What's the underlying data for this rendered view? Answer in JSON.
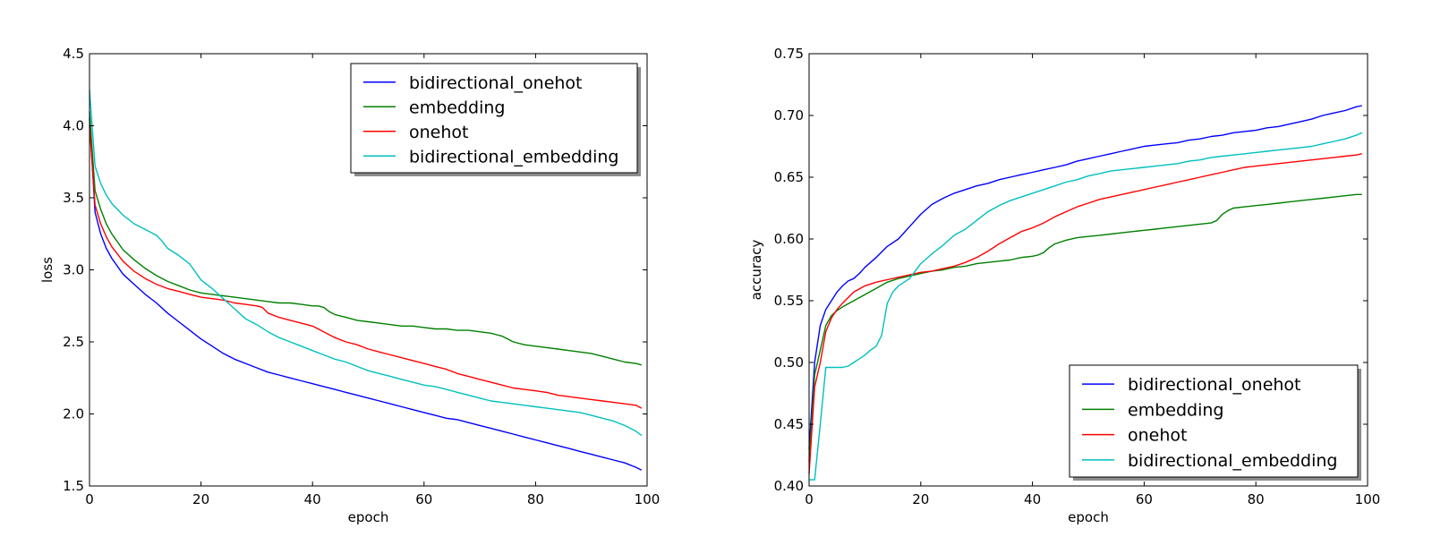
{
  "chart_data": [
    {
      "type": "line",
      "xlabel": "epoch",
      "ylabel": "loss",
      "xlim": [
        0,
        100
      ],
      "ylim": [
        1.5,
        4.5
      ],
      "xticks": [
        "0",
        "20",
        "40",
        "60",
        "80",
        "100"
      ],
      "yticks": [
        "1.5",
        "2.0",
        "2.5",
        "3.0",
        "3.5",
        "4.0",
        "4.5"
      ],
      "grid": false,
      "legend_position": "top-right",
      "series": [
        {
          "name": "bidirectional_onehot",
          "color": "#0000ff",
          "x": [
            0,
            1,
            2,
            3,
            4,
            6,
            8,
            10,
            12,
            14,
            16,
            18,
            20,
            22,
            24,
            26,
            28,
            30,
            32,
            34,
            36,
            38,
            40,
            42,
            44,
            46,
            48,
            50,
            52,
            54,
            56,
            58,
            60,
            62,
            64,
            66,
            68,
            70,
            72,
            74,
            76,
            78,
            80,
            82,
            84,
            86,
            88,
            90,
            92,
            94,
            96,
            98,
            99
          ],
          "y": [
            4.05,
            3.4,
            3.25,
            3.15,
            3.08,
            2.97,
            2.9,
            2.83,
            2.77,
            2.7,
            2.64,
            2.58,
            2.52,
            2.47,
            2.42,
            2.38,
            2.35,
            2.32,
            2.29,
            2.27,
            2.25,
            2.23,
            2.21,
            2.19,
            2.17,
            2.15,
            2.13,
            2.11,
            2.09,
            2.07,
            2.05,
            2.03,
            2.01,
            1.99,
            1.97,
            1.96,
            1.94,
            1.92,
            1.9,
            1.88,
            1.86,
            1.84,
            1.82,
            1.8,
            1.78,
            1.76,
            1.74,
            1.72,
            1.7,
            1.68,
            1.66,
            1.63,
            1.61
          ]
        },
        {
          "name": "embedding",
          "color": "#008000",
          "x": [
            0,
            1,
            2,
            3,
            4,
            6,
            8,
            10,
            12,
            14,
            16,
            18,
            20,
            22,
            24,
            26,
            28,
            30,
            32,
            34,
            36,
            38,
            40,
            41,
            42,
            43,
            44,
            46,
            48,
            50,
            52,
            54,
            56,
            58,
            60,
            62,
            64,
            66,
            68,
            70,
            72,
            73,
            74,
            75,
            76,
            78,
            80,
            82,
            84,
            86,
            88,
            90,
            92,
            94,
            96,
            98,
            99
          ],
          "y": [
            4.1,
            3.55,
            3.42,
            3.32,
            3.25,
            3.14,
            3.07,
            3.01,
            2.96,
            2.92,
            2.89,
            2.86,
            2.84,
            2.83,
            2.82,
            2.81,
            2.8,
            2.79,
            2.78,
            2.77,
            2.77,
            2.76,
            2.75,
            2.75,
            2.74,
            2.71,
            2.69,
            2.67,
            2.65,
            2.64,
            2.63,
            2.62,
            2.61,
            2.61,
            2.6,
            2.59,
            2.59,
            2.58,
            2.58,
            2.57,
            2.56,
            2.55,
            2.54,
            2.52,
            2.5,
            2.48,
            2.47,
            2.46,
            2.45,
            2.44,
            2.43,
            2.42,
            2.4,
            2.38,
            2.36,
            2.35,
            2.34
          ]
        },
        {
          "name": "onehot",
          "color": "#ff0000",
          "x": [
            0,
            1,
            2,
            3,
            4,
            6,
            8,
            10,
            12,
            14,
            16,
            18,
            20,
            22,
            24,
            26,
            28,
            30,
            31,
            32,
            34,
            36,
            38,
            40,
            42,
            44,
            46,
            48,
            50,
            52,
            54,
            56,
            58,
            60,
            62,
            64,
            66,
            68,
            70,
            72,
            74,
            76,
            78,
            80,
            82,
            84,
            86,
            88,
            90,
            92,
            94,
            96,
            98,
            99
          ],
          "y": [
            4.0,
            3.45,
            3.32,
            3.23,
            3.16,
            3.06,
            2.99,
            2.94,
            2.9,
            2.87,
            2.85,
            2.83,
            2.81,
            2.8,
            2.79,
            2.77,
            2.76,
            2.75,
            2.74,
            2.7,
            2.67,
            2.65,
            2.63,
            2.61,
            2.57,
            2.53,
            2.5,
            2.48,
            2.45,
            2.43,
            2.41,
            2.39,
            2.37,
            2.35,
            2.33,
            2.31,
            2.28,
            2.26,
            2.24,
            2.22,
            2.2,
            2.18,
            2.17,
            2.16,
            2.15,
            2.13,
            2.12,
            2.11,
            2.1,
            2.09,
            2.08,
            2.07,
            2.06,
            2.04
          ]
        },
        {
          "name": "bidirectional_embedding",
          "color": "#00bfbf",
          "x": [
            0,
            1,
            2,
            3,
            4,
            6,
            8,
            10,
            12,
            13,
            14,
            16,
            18,
            20,
            22,
            24,
            26,
            28,
            30,
            32,
            34,
            36,
            38,
            40,
            42,
            44,
            46,
            48,
            50,
            52,
            54,
            56,
            58,
            60,
            62,
            64,
            66,
            68,
            70,
            72,
            74,
            76,
            78,
            80,
            82,
            84,
            86,
            88,
            90,
            92,
            94,
            96,
            98,
            99
          ],
          "y": [
            4.25,
            3.72,
            3.6,
            3.52,
            3.46,
            3.38,
            3.32,
            3.28,
            3.24,
            3.2,
            3.15,
            3.1,
            3.04,
            2.93,
            2.87,
            2.8,
            2.73,
            2.66,
            2.62,
            2.57,
            2.53,
            2.5,
            2.47,
            2.44,
            2.41,
            2.38,
            2.36,
            2.33,
            2.3,
            2.28,
            2.26,
            2.24,
            2.22,
            2.2,
            2.19,
            2.17,
            2.15,
            2.13,
            2.11,
            2.09,
            2.08,
            2.07,
            2.06,
            2.05,
            2.04,
            2.03,
            2.02,
            2.01,
            1.99,
            1.97,
            1.95,
            1.92,
            1.88,
            1.85
          ]
        }
      ]
    },
    {
      "type": "line",
      "xlabel": "epoch",
      "ylabel": "accuracy",
      "xlim": [
        0,
        100
      ],
      "ylim": [
        0.4,
        0.75
      ],
      "xticks": [
        "0",
        "20",
        "40",
        "60",
        "80",
        "100"
      ],
      "yticks": [
        "0.40",
        "0.45",
        "0.50",
        "0.55",
        "0.60",
        "0.65",
        "0.70",
        "0.75"
      ],
      "grid": false,
      "legend_position": "bottom-right",
      "series": [
        {
          "name": "bidirectional_onehot",
          "color": "#0000ff",
          "x": [
            0,
            1,
            2,
            3,
            4,
            5,
            6,
            7,
            8,
            9,
            10,
            12,
            14,
            16,
            18,
            20,
            22,
            24,
            26,
            28,
            30,
            32,
            34,
            36,
            38,
            40,
            42,
            44,
            46,
            48,
            50,
            52,
            54,
            56,
            58,
            60,
            62,
            64,
            66,
            68,
            70,
            72,
            74,
            76,
            78,
            80,
            82,
            84,
            86,
            88,
            90,
            92,
            94,
            96,
            98,
            99
          ],
          "y": [
            0.43,
            0.5,
            0.53,
            0.543,
            0.55,
            0.557,
            0.562,
            0.566,
            0.568,
            0.572,
            0.577,
            0.585,
            0.594,
            0.6,
            0.61,
            0.62,
            0.628,
            0.633,
            0.637,
            0.64,
            0.643,
            0.645,
            0.648,
            0.65,
            0.652,
            0.654,
            0.656,
            0.658,
            0.66,
            0.663,
            0.665,
            0.667,
            0.669,
            0.671,
            0.673,
            0.675,
            0.676,
            0.677,
            0.678,
            0.68,
            0.681,
            0.683,
            0.684,
            0.686,
            0.687,
            0.688,
            0.69,
            0.691,
            0.693,
            0.695,
            0.697,
            0.7,
            0.702,
            0.704,
            0.707,
            0.708
          ]
        },
        {
          "name": "embedding",
          "color": "#008000",
          "x": [
            0,
            1,
            2,
            3,
            4,
            5,
            6,
            8,
            10,
            12,
            14,
            16,
            18,
            20,
            22,
            24,
            26,
            28,
            30,
            32,
            34,
            36,
            38,
            40,
            41,
            42,
            43,
            44,
            46,
            48,
            50,
            52,
            54,
            56,
            58,
            60,
            62,
            64,
            66,
            68,
            70,
            72,
            73,
            74,
            75,
            76,
            78,
            80,
            82,
            84,
            86,
            88,
            90,
            92,
            94,
            96,
            98,
            99
          ],
          "y": [
            0.42,
            0.49,
            0.51,
            0.53,
            0.538,
            0.542,
            0.545,
            0.55,
            0.555,
            0.56,
            0.565,
            0.568,
            0.57,
            0.572,
            0.574,
            0.575,
            0.577,
            0.578,
            0.58,
            0.581,
            0.582,
            0.583,
            0.585,
            0.586,
            0.587,
            0.589,
            0.593,
            0.596,
            0.599,
            0.601,
            0.602,
            0.603,
            0.604,
            0.605,
            0.606,
            0.607,
            0.608,
            0.609,
            0.61,
            0.611,
            0.612,
            0.613,
            0.615,
            0.62,
            0.623,
            0.625,
            0.626,
            0.627,
            0.628,
            0.629,
            0.63,
            0.631,
            0.632,
            0.633,
            0.634,
            0.635,
            0.636,
            0.636
          ]
        },
        {
          "name": "onehot",
          "color": "#ff0000",
          "x": [
            0,
            1,
            2,
            3,
            4,
            5,
            6,
            8,
            10,
            12,
            14,
            16,
            18,
            20,
            22,
            24,
            26,
            28,
            30,
            32,
            34,
            36,
            38,
            40,
            42,
            44,
            46,
            48,
            50,
            52,
            54,
            56,
            58,
            60,
            62,
            64,
            66,
            68,
            70,
            72,
            74,
            76,
            78,
            80,
            82,
            84,
            86,
            88,
            90,
            92,
            94,
            96,
            98,
            99
          ],
          "y": [
            0.41,
            0.48,
            0.5,
            0.525,
            0.536,
            0.543,
            0.548,
            0.557,
            0.562,
            0.565,
            0.567,
            0.569,
            0.571,
            0.573,
            0.574,
            0.576,
            0.578,
            0.581,
            0.585,
            0.59,
            0.596,
            0.601,
            0.606,
            0.609,
            0.613,
            0.618,
            0.622,
            0.626,
            0.629,
            0.632,
            0.634,
            0.636,
            0.638,
            0.64,
            0.642,
            0.644,
            0.646,
            0.648,
            0.65,
            0.652,
            0.654,
            0.656,
            0.658,
            0.659,
            0.66,
            0.661,
            0.662,
            0.663,
            0.664,
            0.665,
            0.666,
            0.667,
            0.668,
            0.669
          ]
        },
        {
          "name": "bidirectional_embedding",
          "color": "#00bfbf",
          "x": [
            0,
            1,
            2,
            3,
            4,
            5,
            6,
            7,
            8,
            9,
            10,
            11,
            12,
            13,
            14,
            15,
            16,
            18,
            20,
            22,
            24,
            26,
            28,
            30,
            32,
            34,
            36,
            38,
            40,
            42,
            44,
            46,
            48,
            50,
            52,
            54,
            56,
            58,
            60,
            62,
            64,
            66,
            68,
            70,
            72,
            74,
            76,
            78,
            80,
            82,
            84,
            86,
            88,
            90,
            92,
            94,
            96,
            98,
            99
          ],
          "y": [
            0.405,
            0.405,
            0.45,
            0.496,
            0.496,
            0.496,
            0.496,
            0.497,
            0.5,
            0.503,
            0.506,
            0.51,
            0.513,
            0.522,
            0.548,
            0.557,
            0.562,
            0.568,
            0.58,
            0.588,
            0.595,
            0.603,
            0.608,
            0.615,
            0.622,
            0.627,
            0.631,
            0.634,
            0.637,
            0.64,
            0.643,
            0.646,
            0.648,
            0.651,
            0.653,
            0.655,
            0.656,
            0.657,
            0.658,
            0.659,
            0.66,
            0.661,
            0.663,
            0.664,
            0.666,
            0.667,
            0.668,
            0.669,
            0.67,
            0.671,
            0.672,
            0.673,
            0.674,
            0.675,
            0.677,
            0.679,
            0.681,
            0.684,
            0.686
          ]
        }
      ]
    }
  ]
}
